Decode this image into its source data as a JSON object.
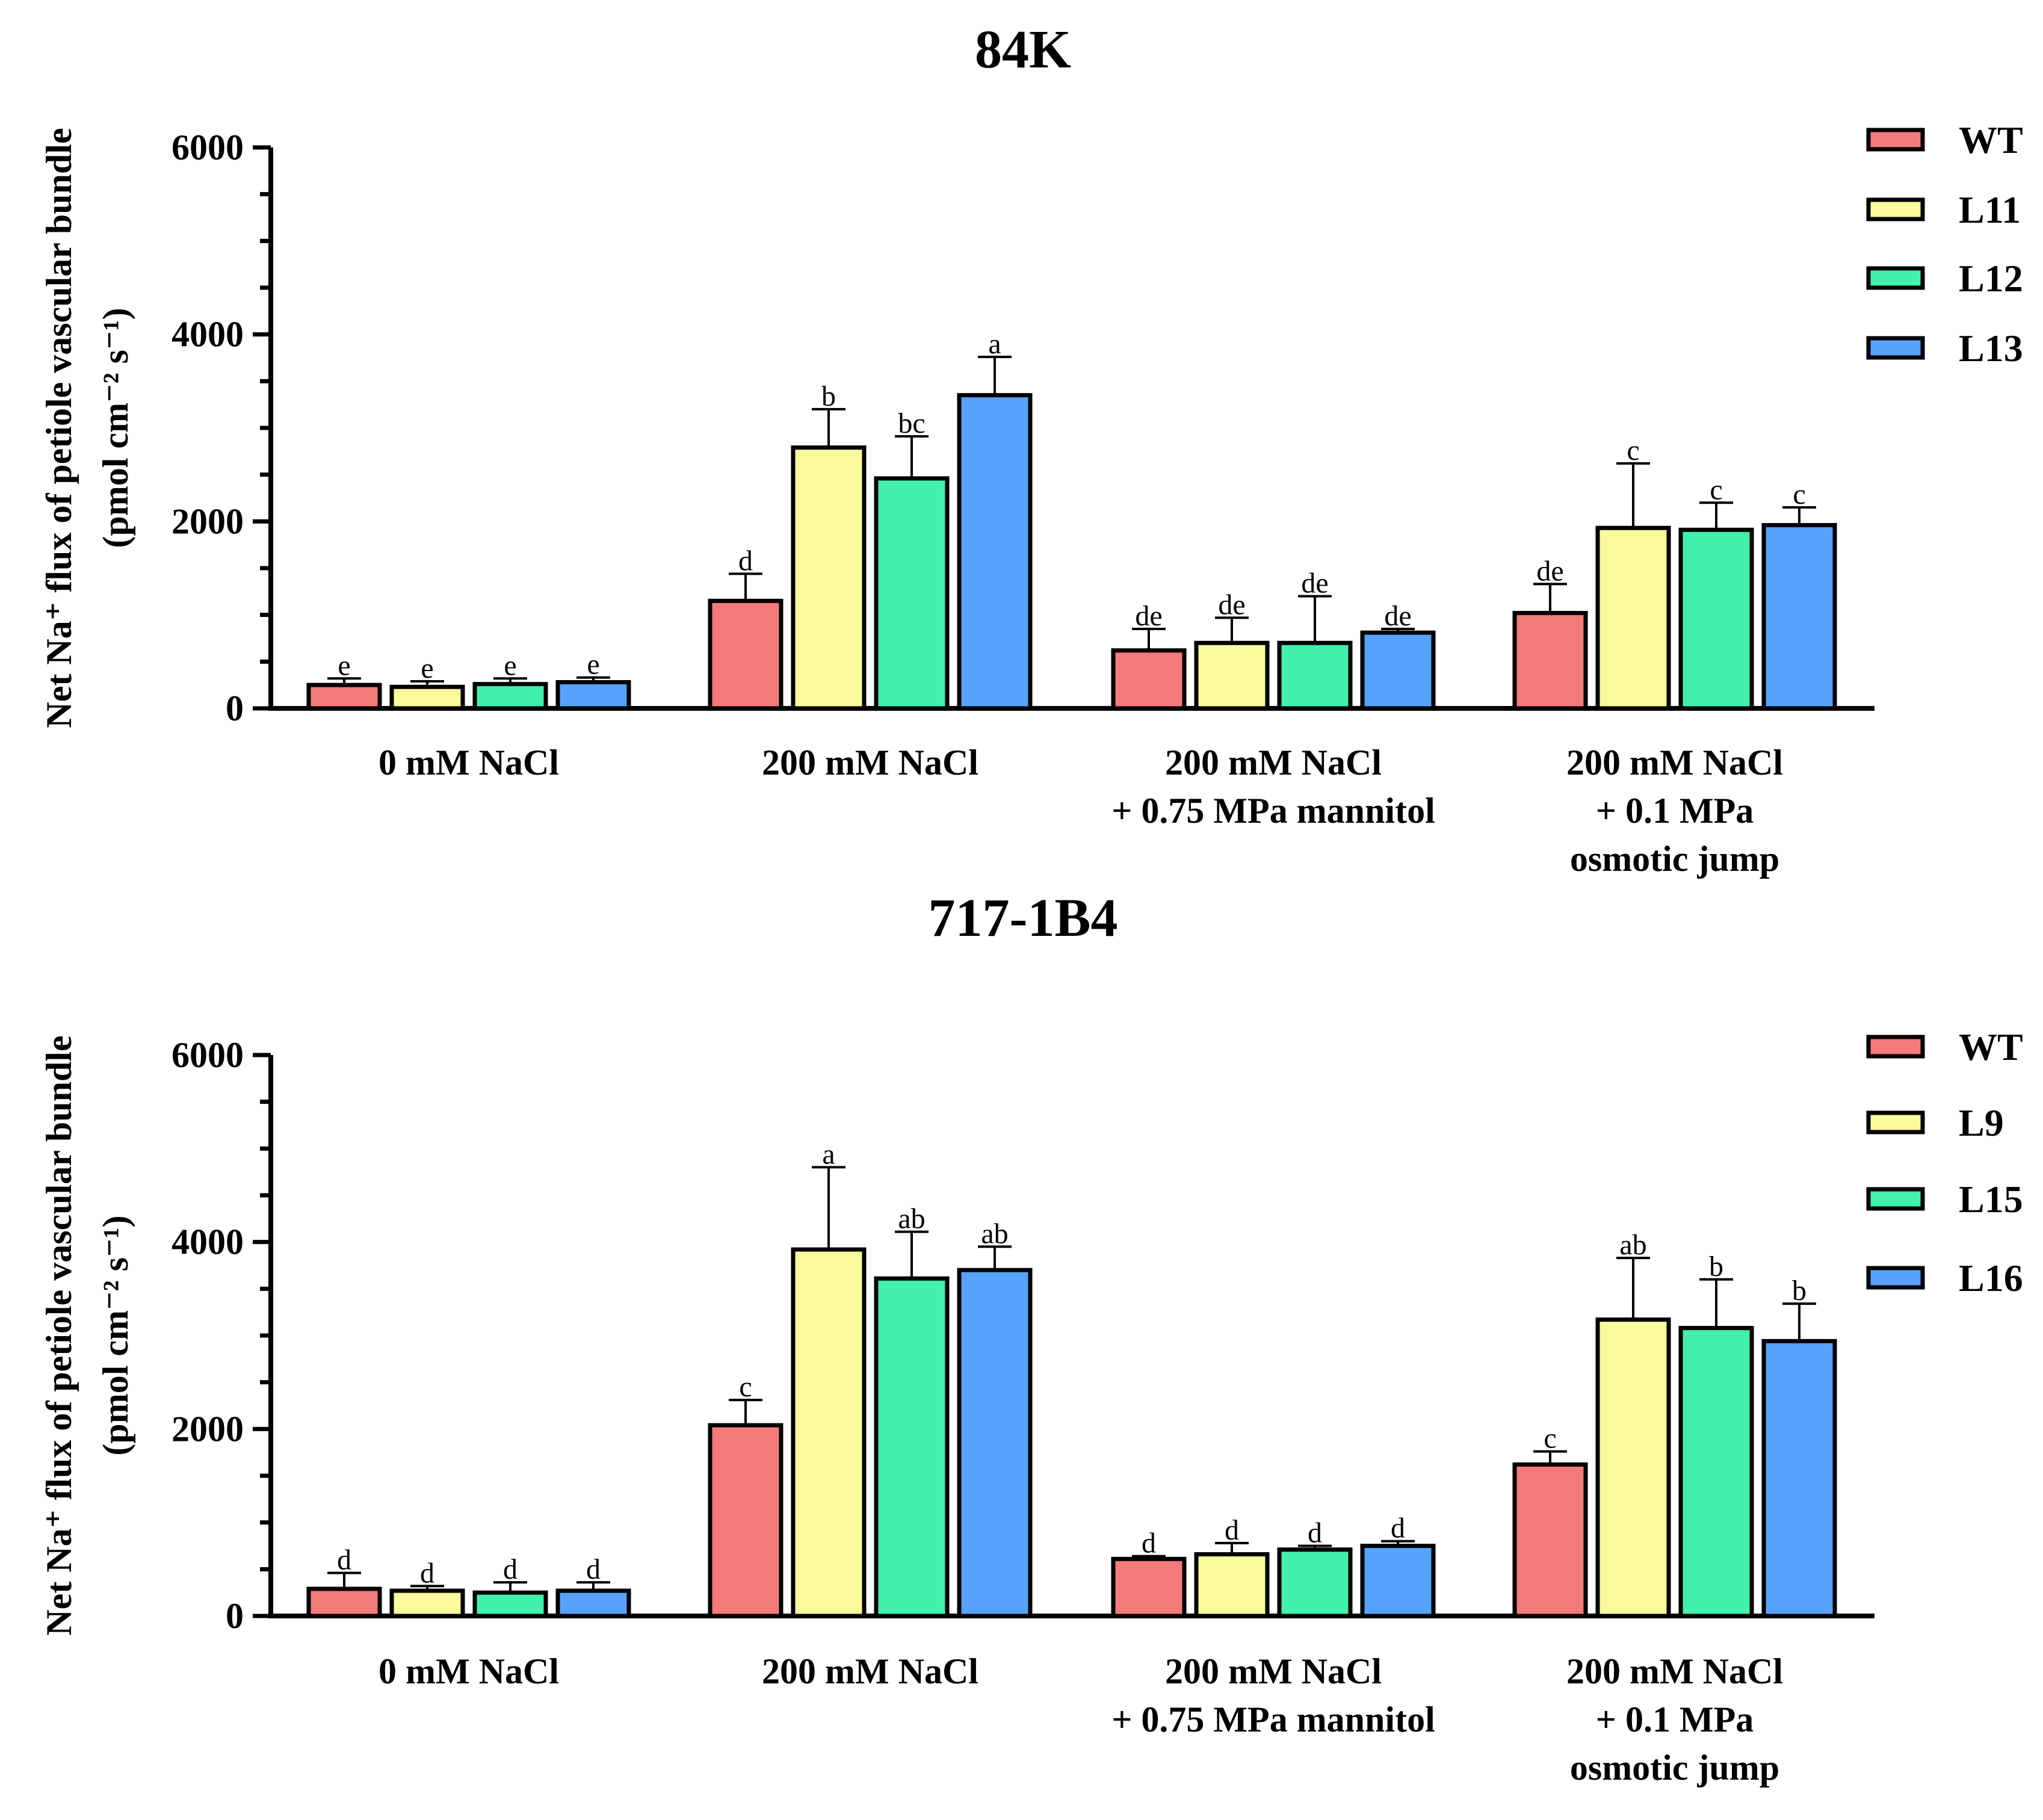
{
  "chart_data": [
    {
      "type": "bar",
      "title": "84K",
      "ylabel_line1": "Net Na⁺ flux of petiole vascular bundle",
      "ylabel_line2": "(pmol cm⁻² s⁻¹)",
      "xlabel": "",
      "ylim": [
        0,
        6000
      ],
      "yticks": [
        0,
        2000,
        4000,
        6000
      ],
      "categories": [
        [
          "0 mM NaCl"
        ],
        [
          "200 mM NaCl"
        ],
        [
          "200 mM NaCl",
          "+ 0.75 MPa mannitol"
        ],
        [
          "200 mM NaCl",
          "+ 0.1 MPa",
          "osmotic jump"
        ]
      ],
      "series": [
        {
          "name": "WT",
          "color": "#f47a7a",
          "values": [
            250,
            1150,
            620,
            1020
          ],
          "errors": [
            70,
            290,
            230,
            310
          ],
          "letters": [
            "e",
            "d",
            "de",
            "de"
          ]
        },
        {
          "name": "L11",
          "color": "#fafa9a",
          "values": [
            230,
            2790,
            700,
            1930
          ],
          "errors": [
            60,
            410,
            270,
            690
          ],
          "letters": [
            "e",
            "b",
            "de",
            "c"
          ]
        },
        {
          "name": "L12",
          "color": "#43f0ae",
          "values": [
            260,
            2460,
            700,
            1910
          ],
          "errors": [
            60,
            450,
            500,
            290
          ],
          "letters": [
            "e",
            "bc",
            "de",
            "c"
          ]
        },
        {
          "name": "L13",
          "color": "#56a2fc",
          "values": [
            280,
            3350,
            810,
            1960
          ],
          "errors": [
            50,
            410,
            40,
            190
          ],
          "letters": [
            "e",
            "a",
            "de",
            "c"
          ]
        }
      ],
      "legend_position": "top-right"
    },
    {
      "type": "bar",
      "title": "717-1B4",
      "ylabel_line1": "Net Na⁺ flux of petiole vascular bundle",
      "ylabel_line2": "(pmol cm⁻² s⁻¹)",
      "xlabel": "",
      "ylim": [
        0,
        6000
      ],
      "yticks": [
        0,
        2000,
        4000,
        6000
      ],
      "categories": [
        [
          "0 mM NaCl"
        ],
        [
          "200 mM NaCl"
        ],
        [
          "200 mM NaCl",
          "+ 0.75 MPa mannitol"
        ],
        [
          "200 mM NaCl",
          "+ 0.1 MPa",
          "osmotic jump"
        ]
      ],
      "series": [
        {
          "name": "WT",
          "color": "#f47a7a",
          "values": [
            290,
            2040,
            610,
            1620
          ],
          "errors": [
            170,
            270,
            30,
            140
          ],
          "letters": [
            "d",
            "c",
            "d",
            "c"
          ]
        },
        {
          "name": "L9",
          "color": "#fafa9a",
          "values": [
            270,
            3920,
            660,
            3170
          ],
          "errors": [
            50,
            880,
            120,
            660
          ],
          "letters": [
            "d",
            "a",
            "d",
            "ab"
          ]
        },
        {
          "name": "L15",
          "color": "#43f0ae",
          "values": [
            250,
            3610,
            710,
            3080
          ],
          "errors": [
            110,
            500,
            40,
            520
          ],
          "letters": [
            "d",
            "ab",
            "d",
            "b"
          ]
        },
        {
          "name": "L16",
          "color": "#56a2fc",
          "values": [
            270,
            3700,
            750,
            2940
          ],
          "errors": [
            90,
            250,
            50,
            400
          ],
          "letters": [
            "d",
            "ab",
            "d",
            "b"
          ]
        }
      ],
      "legend_position": "top-right"
    }
  ]
}
